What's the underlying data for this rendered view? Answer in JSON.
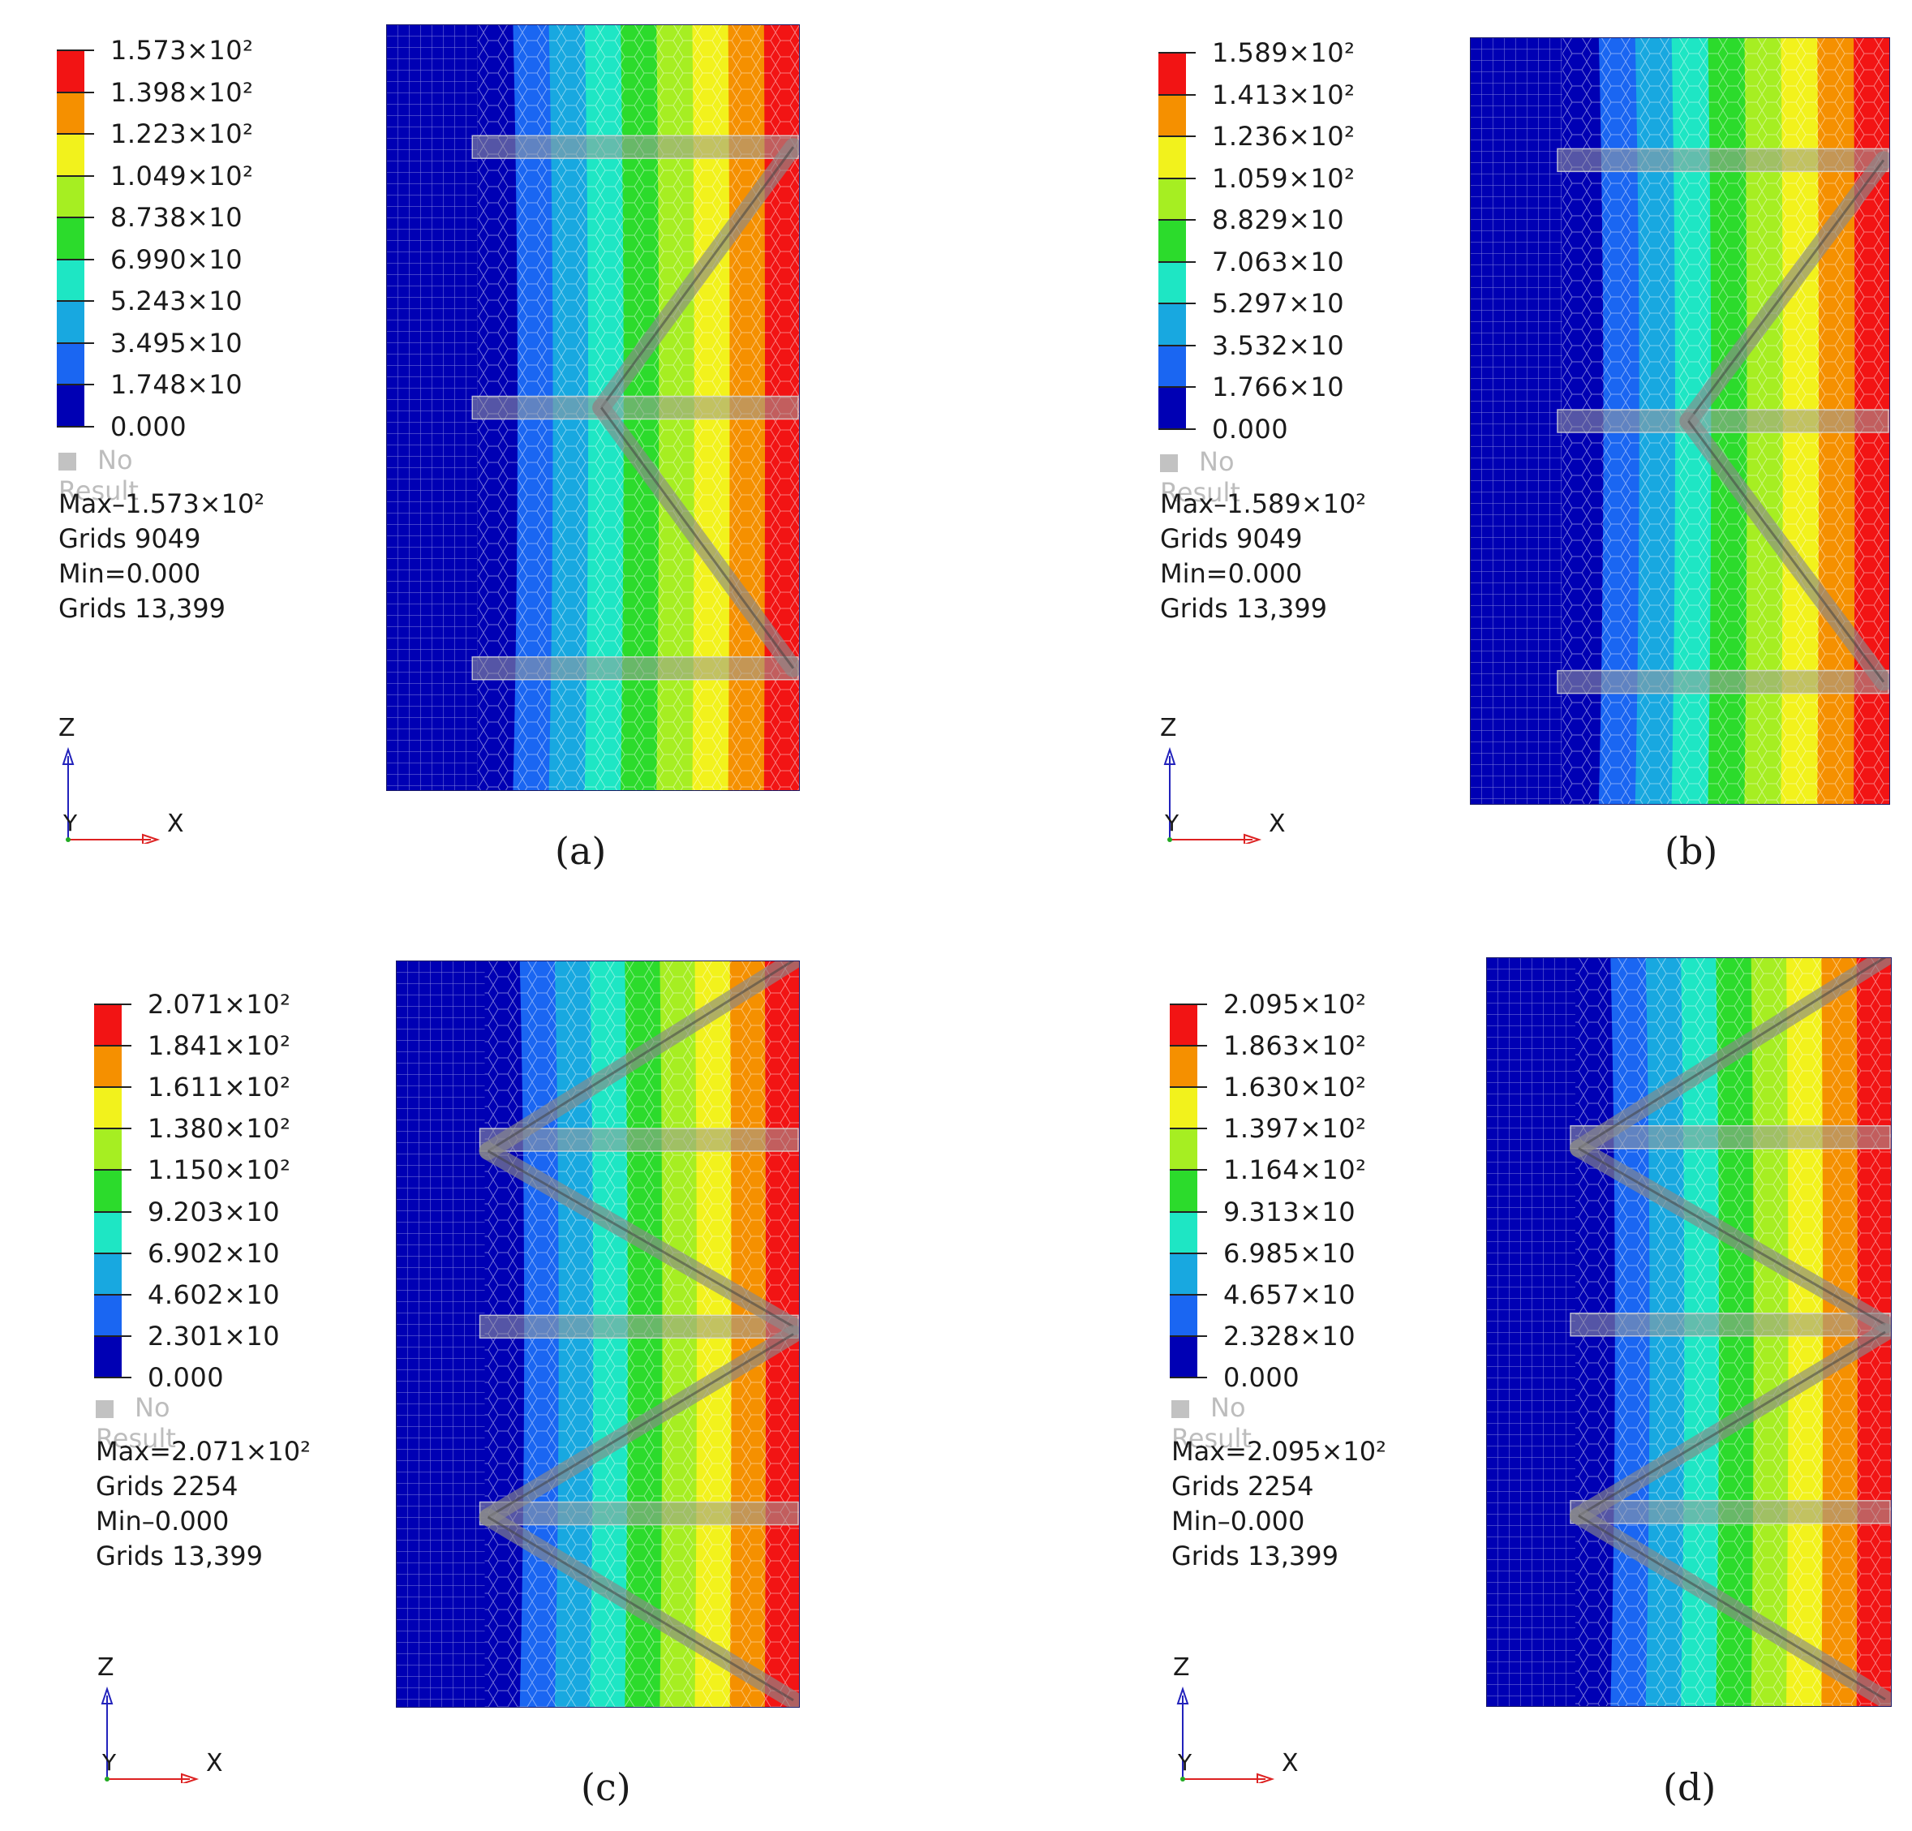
{
  "colors": [
    "#0000b4",
    "#1a66f2",
    "#18a8e0",
    "#1ee6c4",
    "#2cdb2c",
    "#a6ee22",
    "#f2f21c",
    "#f59000",
    "#f21414"
  ],
  "no_result_color": "#c2c2c2",
  "panels": [
    {
      "caption": "(a)",
      "legend": [
        "1.573×10²",
        "1.398×10²",
        "1.223×10²",
        "1.049×10²",
        "8.738×10",
        "6.990×10",
        "5.243×10",
        "3.495×10",
        "1.748×10",
        "0.000"
      ],
      "no_result": "No Result",
      "stats": [
        "Max–1.573×10²",
        "Grids 9049",
        "Min=0.000",
        "Grids 13,399"
      ],
      "axes": {
        "z": "Z",
        "y": "Y",
        "x": "X"
      },
      "structure": "two-bay-v"
    },
    {
      "caption": "(b)",
      "legend": [
        "1.589×10²",
        "1.413×10²",
        "1.236×10²",
        "1.059×10²",
        "8.829×10",
        "7.063×10",
        "5.297×10",
        "3.532×10",
        "1.766×10",
        "0.000"
      ],
      "no_result": "No Result",
      "stats": [
        "Max–1.589×10²",
        "Grids 9049",
        "Min=0.000",
        "Grids 13,399"
      ],
      "axes": {
        "z": "Z",
        "y": "Y",
        "x": "X"
      },
      "structure": "two-bay-v"
    },
    {
      "caption": "(c)",
      "legend": [
        "2.071×10²",
        "1.841×10²",
        "1.611×10²",
        "1.380×10²",
        "1.150×10²",
        "9.203×10",
        "6.902×10",
        "4.602×10",
        "2.301×10",
        "0.000"
      ],
      "no_result": "No Result",
      "stats": [
        "Max=2.071×10²",
        "Grids 2254",
        "Min–0.000",
        "Grids 13,399"
      ],
      "axes": {
        "z": "Z",
        "y": "Y",
        "x": "X"
      },
      "structure": "zigzag"
    },
    {
      "caption": "(d)",
      "legend": [
        "2.095×10²",
        "1.863×10²",
        "1.630×10²",
        "1.397×10²",
        "1.164×10²",
        "9.313×10",
        "6.985×10",
        "4.657×10",
        "2.328×10",
        "0.000"
      ],
      "no_result": "No Result",
      "stats": [
        "Max=2.095×10²",
        "Grids 2254",
        "Min–0.000",
        "Grids 13,399"
      ],
      "axes": {
        "z": "Z",
        "y": "Y",
        "x": "X"
      },
      "structure": "zigzag"
    }
  ]
}
